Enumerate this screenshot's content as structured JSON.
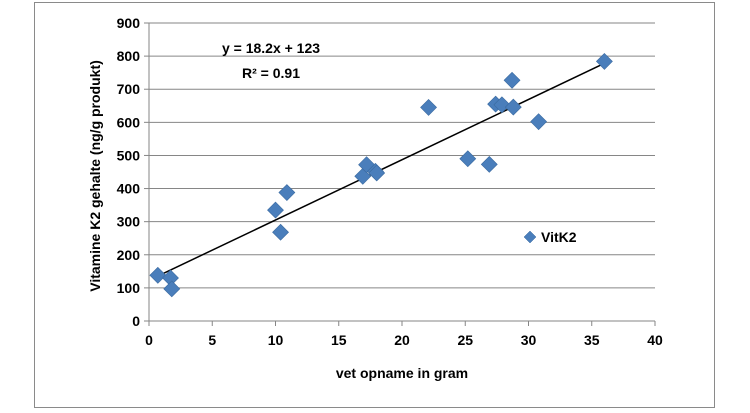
{
  "chart_data": {
    "type": "scatter",
    "xlabel": "vet opname in gram",
    "ylabel": "Vitamine K2 gehalte (ng/g produkt)",
    "xlim": [
      0,
      40
    ],
    "ylim": [
      0,
      900
    ],
    "x_ticks": [
      0,
      5,
      10,
      15,
      20,
      25,
      30,
      35,
      40
    ],
    "y_ticks": [
      0,
      100,
      200,
      300,
      400,
      500,
      600,
      700,
      800,
      900
    ],
    "grid": "horizontal",
    "legend_position": "right",
    "series": [
      {
        "name": "VitK2",
        "color": "#4a7ebb",
        "marker": "diamond",
        "points": [
          {
            "x": 0.7,
            "y": 138
          },
          {
            "x": 1.7,
            "y": 130
          },
          {
            "x": 1.8,
            "y": 97
          },
          {
            "x": 10.0,
            "y": 335
          },
          {
            "x": 10.4,
            "y": 268
          },
          {
            "x": 10.9,
            "y": 388
          },
          {
            "x": 16.9,
            "y": 437
          },
          {
            "x": 17.2,
            "y": 472
          },
          {
            "x": 17.9,
            "y": 452
          },
          {
            "x": 18.0,
            "y": 447
          },
          {
            "x": 22.1,
            "y": 645
          },
          {
            "x": 25.2,
            "y": 490
          },
          {
            "x": 26.9,
            "y": 473
          },
          {
            "x": 27.4,
            "y": 655
          },
          {
            "x": 27.9,
            "y": 653
          },
          {
            "x": 28.7,
            "y": 727
          },
          {
            "x": 28.8,
            "y": 646
          },
          {
            "x": 30.8,
            "y": 602
          },
          {
            "x": 36.0,
            "y": 784
          }
        ]
      }
    ],
    "trendline": {
      "slope": 18.2,
      "intercept": 123,
      "x_range": [
        0.7,
        36.0
      ],
      "color": "#000000"
    },
    "annotations": {
      "equation": "y = 18.2x + 123",
      "r_squared": "R² = 0.91"
    }
  }
}
